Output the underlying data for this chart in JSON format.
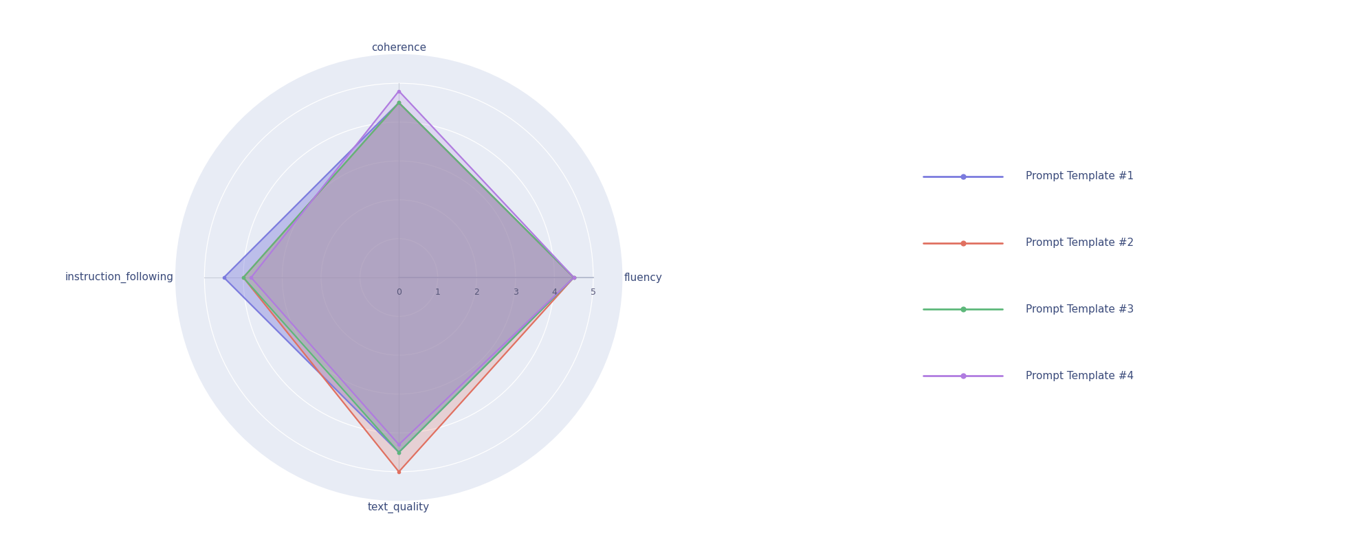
{
  "categories": [
    "coherence",
    "fluency",
    "text_quality",
    "instruction_following"
  ],
  "templates": [
    {
      "name": "Prompt Template #1",
      "values": [
        4.5,
        4.5,
        4.5,
        4.5
      ],
      "color": "#7b7bde",
      "fill_color": "#8888dd",
      "alpha": 0.45
    },
    {
      "name": "Prompt Template #2",
      "values": [
        4.5,
        4.5,
        5.0,
        4.0
      ],
      "color": "#e07060",
      "fill_color": "#e07060",
      "alpha": 0.22
    },
    {
      "name": "Prompt Template #3",
      "values": [
        4.5,
        4.5,
        4.5,
        4.0
      ],
      "color": "#5db87a",
      "fill_color": "#5db87a",
      "alpha": 0.18
    },
    {
      "name": "Prompt Template #4",
      "values": [
        4.8,
        4.5,
        4.3,
        3.8
      ],
      "color": "#b07be0",
      "fill_color": "#b07be0",
      "alpha": 0.18
    }
  ],
  "max_val": 5,
  "grid_values": [
    1,
    2,
    3,
    4,
    5
  ],
  "bg_color": "#ffffff",
  "polar_bg": "#e8ecf5",
  "grid_color": "#ffffff",
  "label_color": "#3a4a7a",
  "label_fontsize": 11,
  "legend_fontsize": 11,
  "tick_fontsize": 9,
  "angles_deg": [
    90,
    0,
    270,
    180
  ]
}
